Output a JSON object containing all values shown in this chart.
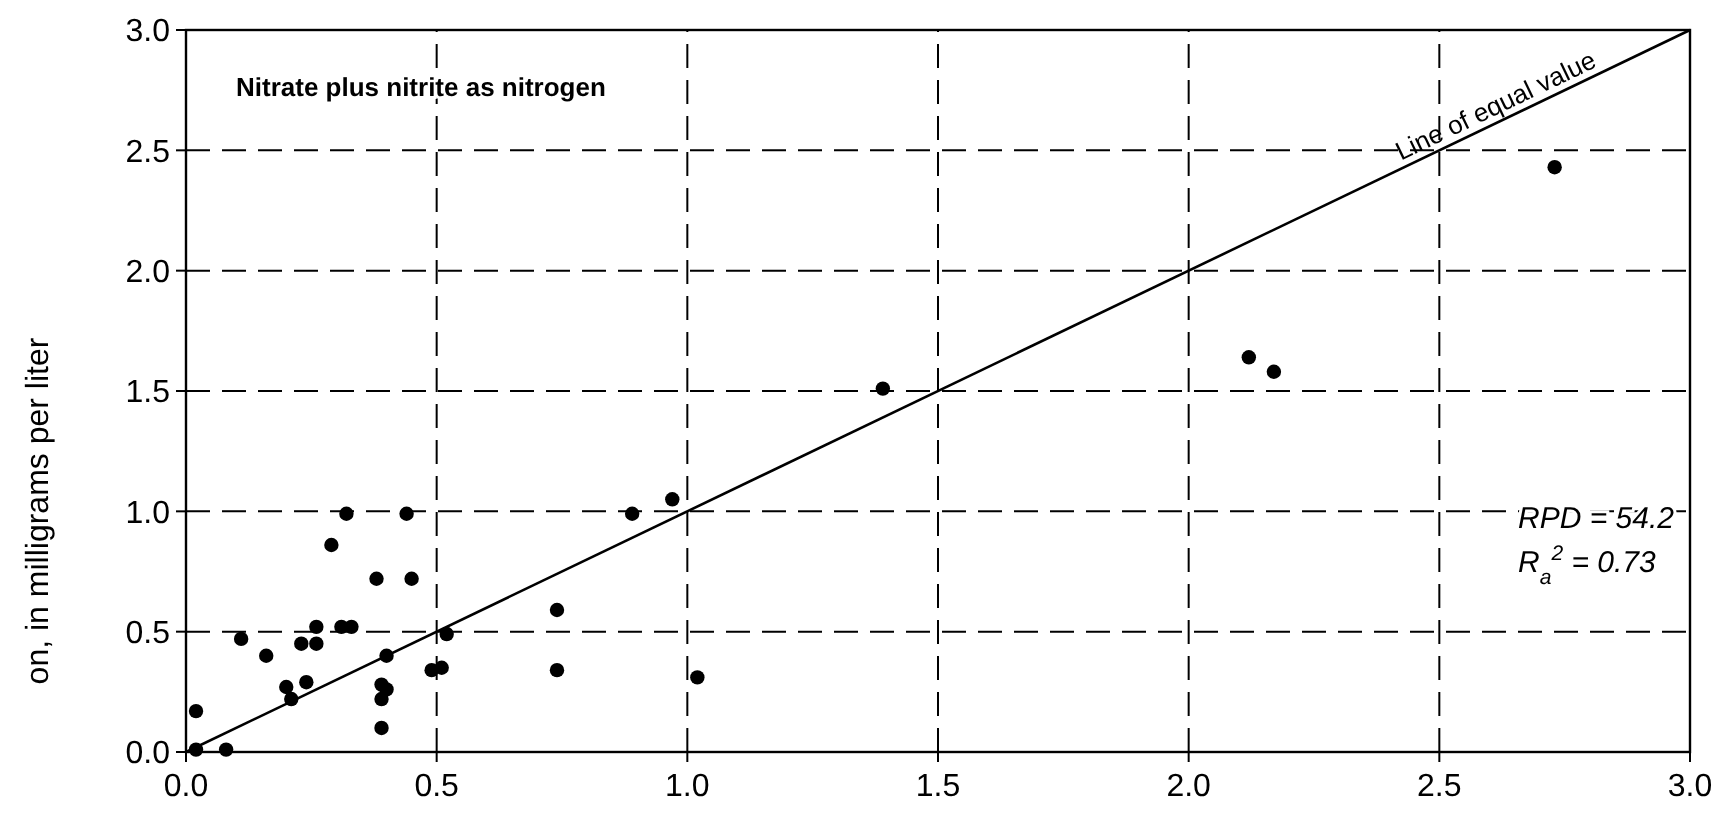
{
  "chart_data": {
    "type": "scatter",
    "title": "Nitrate plus nitrite as nitrogen",
    "ylabel": "on, in milligrams per liter",
    "xlim": [
      0,
      3
    ],
    "ylim": [
      0,
      3
    ],
    "xticks": [
      {
        "value": 0,
        "label": "0.0"
      },
      0.5,
      {
        "value": 1,
        "label": "1.0"
      },
      1.5,
      {
        "value": 2,
        "label": "2.0"
      },
      2.5,
      {
        "value": 3,
        "label": "3.0"
      }
    ],
    "yticks": [
      {
        "value": 0,
        "label": "0.0"
      },
      0.5,
      {
        "value": 1,
        "label": "1.0"
      },
      1.5,
      {
        "value": 2,
        "label": "2.0"
      },
      2.5,
      {
        "value": 3,
        "label": "3.0"
      }
    ],
    "grid": true,
    "marker": "circle",
    "series": [
      {
        "color": "#000000",
        "x": [
          0.02,
          0.02,
          0.08,
          0.11,
          0.16,
          0.2,
          0.21,
          0.24,
          0.23,
          0.26,
          0.26,
          0.29,
          0.31,
          0.33,
          0.32,
          0.38,
          0.39,
          0.39,
          0.4,
          0.39,
          0.4,
          0.44,
          0.45,
          0.49,
          0.51,
          0.52,
          0.74,
          0.74,
          0.89,
          0.97,
          1.02,
          1.39,
          2.12,
          2.17,
          2.73
        ],
        "values": [
          0.17,
          0.01,
          0.01,
          0.47,
          0.4,
          0.27,
          0.22,
          0.29,
          0.45,
          0.52,
          0.45,
          0.86,
          0.52,
          0.52,
          0.99,
          0.72,
          0.22,
          0.28,
          0.26,
          0.1,
          0.4,
          0.99,
          0.72,
          0.34,
          0.35,
          0.49,
          0.59,
          0.34,
          0.99,
          1.05,
          0.31,
          1.51,
          1.64,
          1.58,
          2.43
        ]
      },
      {
        "type": "line",
        "color": "#000000",
        "marker": "none",
        "x": [
          0,
          3
        ],
        "values": [
          0,
          3
        ]
      }
    ],
    "annotations": [
      {
        "text": "Line of equal value",
        "x": 2.62,
        "y": 2.62
      },
      "RPD = 54.2",
      "R$_{a}$$^{2}$ = 0.73"
    ]
  }
}
